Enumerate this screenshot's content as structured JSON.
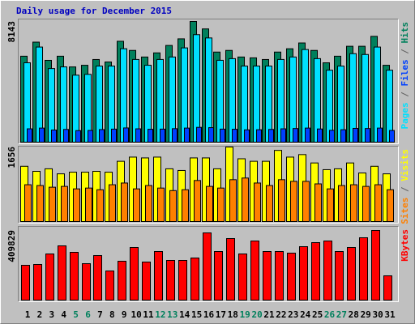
{
  "chart_data": [
    {
      "type": "bar",
      "title": "Daily usage for December 2015",
      "legend_separator": " / ",
      "ylim": [
        0,
        8143
      ],
      "yticks": [
        8143
      ],
      "series": [
        {
          "name": "Pages",
          "color": "#00e0ff",
          "values": [
            5357,
            6417,
            4966,
            5078,
            4520,
            4576,
            5134,
            5134,
            6305,
            5580,
            5189,
            5580,
            5747,
            6361,
            7254,
            7031,
            5524,
            5636,
            5134,
            5134,
            5134,
            5580,
            5747,
            6250,
            5636,
            4855,
            5134,
            5971,
            5915,
            6417,
            4855
          ]
        },
        {
          "name": "Files",
          "color": "#0040ff",
          "values": [
            900,
            950,
            820,
            860,
            780,
            790,
            850,
            880,
            960,
            900,
            870,
            880,
            910,
            950,
            1000,
            980,
            880,
            870,
            830,
            840,
            860,
            900,
            920,
            950,
            890,
            800,
            840,
            930,
            920,
            950,
            790
          ]
        },
        {
          "name": "Hits",
          "color": "#00805c",
          "values": [
            5800,
            6749,
            5521,
            5800,
            5076,
            5187,
            5577,
            5410,
            6807,
            6190,
            5745,
            6024,
            6525,
            6972,
            8143,
            7641,
            6079,
            6190,
            5745,
            5689,
            5577,
            6079,
            6302,
            6693,
            6190,
            5354,
            5800,
            6470,
            6470,
            7139,
            5187
          ]
        }
      ]
    },
    {
      "type": "bar",
      "legend_separator": " / ",
      "ylim": [
        0,
        1656
      ],
      "yticks": [
        1656
      ],
      "series": [
        {
          "name": "Sites",
          "color": "#ff8000",
          "values": [
            818,
            800,
            763,
            781,
            726,
            744,
            707,
            818,
            856,
            726,
            800,
            744,
            688,
            707,
            912,
            781,
            744,
            930,
            967,
            856,
            800,
            930,
            893,
            893,
            837,
            726,
            800,
            818,
            781,
            818,
            707
          ]
        },
        {
          "name": "Visits",
          "color": "#ffff00",
          "values": [
            1228,
            1116,
            1172,
            1060,
            1097,
            1097,
            1116,
            1097,
            1339,
            1432,
            1414,
            1432,
            1172,
            1135,
            1414,
            1414,
            1172,
            1656,
            1395,
            1339,
            1339,
            1581,
            1432,
            1488,
            1302,
            1153,
            1172,
            1302,
            1079,
            1228,
            1060
          ]
        }
      ]
    },
    {
      "type": "bar",
      "legend_separator": " / ",
      "ylim": [
        0,
        409829
      ],
      "yticks": [
        409829
      ],
      "categories": [
        "1",
        "2",
        "3",
        "4",
        "5",
        "6",
        "7",
        "8",
        "9",
        "10",
        "11",
        "12",
        "13",
        "14",
        "15",
        "16",
        "17",
        "18",
        "19",
        "20",
        "21",
        "22",
        "23",
        "24",
        "25",
        "26",
        "27",
        "28",
        "29",
        "30",
        "31"
      ],
      "category_colors": [
        "#000000",
        "#000000",
        "#000000",
        "#000000",
        "#00805c",
        "#00805c",
        "#000000",
        "#000000",
        "#000000",
        "#000000",
        "#000000",
        "#00805c",
        "#00805c",
        "#000000",
        "#000000",
        "#000000",
        "#000000",
        "#000000",
        "#00805c",
        "#00805c",
        "#000000",
        "#000000",
        "#000000",
        "#000000",
        "#000000",
        "#00805c",
        "#00805c",
        "#000000",
        "#000000",
        "#000000",
        "#000000"
      ],
      "series": [
        {
          "name": "KBytes",
          "color": "#ff0000",
          "values": [
            204895,
            209660,
            271605,
            319255,
            281135,
            214425,
            262075,
            171540,
            228720,
            309725,
            223955,
            285900,
            233485,
            233485,
            247780,
            395495,
            285900,
            362140,
            271605,
            347845,
            285900,
            285900,
            276370,
            314490,
            338315,
            347845,
            285900,
            309725,
            366905,
            409829,
            142950
          ]
        }
      ]
    }
  ]
}
